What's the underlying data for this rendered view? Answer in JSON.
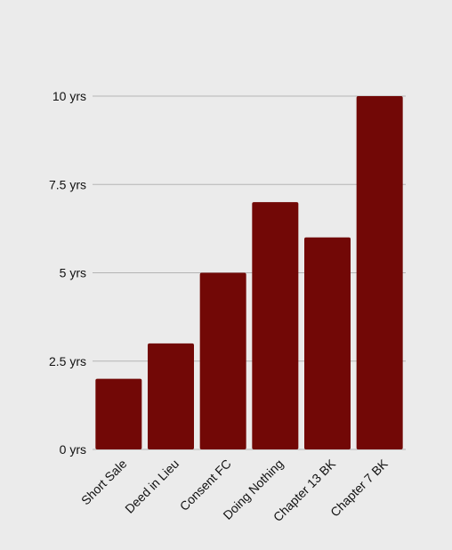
{
  "chart_data": {
    "type": "bar",
    "title": "",
    "xlabel": "",
    "ylabel": "",
    "categories": [
      "Short Sale",
      "Deed in Lieu",
      "Consent FC",
      "Doing Nothing",
      "Chapter 13 BK",
      "Chapter 7 BK"
    ],
    "values": [
      2,
      3,
      5,
      7,
      6,
      10
    ],
    "ylim": [
      0,
      10
    ],
    "yticks": [
      0,
      2.5,
      5,
      7.5,
      10
    ],
    "ytick_labels": [
      "0 yrs",
      "2.5 yrs",
      "5 yrs",
      "7.5 yrs",
      "10 yrs"
    ],
    "grid": true,
    "bar_color": "#720806",
    "grid_color": "#b4b4b4",
    "background": "#ebebeb"
  }
}
